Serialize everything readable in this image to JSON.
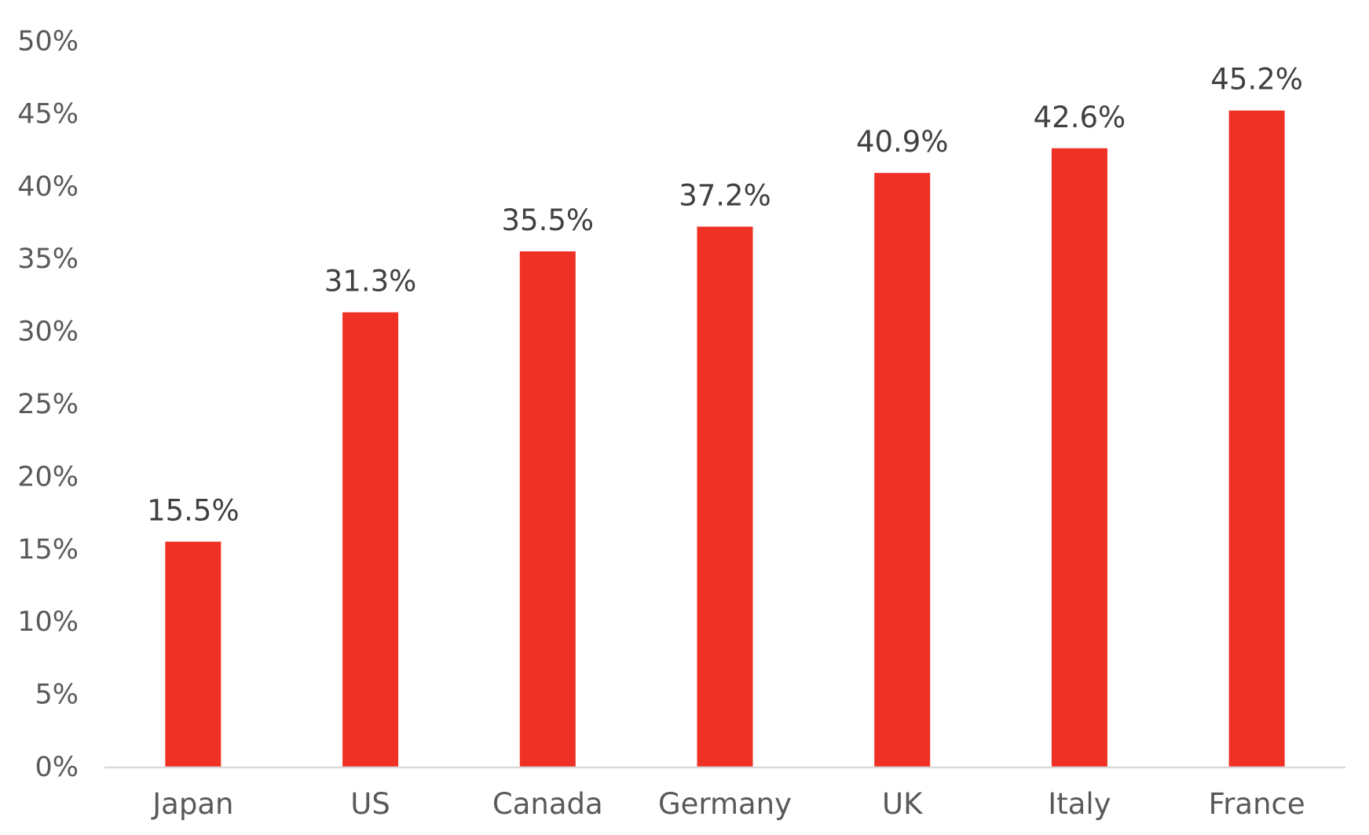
{
  "chart_data": {
    "type": "bar",
    "categories": [
      "Japan",
      "US",
      "Canada",
      "Germany",
      "UK",
      "Italy",
      "France"
    ],
    "values": [
      15.5,
      31.3,
      35.5,
      37.2,
      40.9,
      42.6,
      45.2
    ],
    "data_labels": [
      "15.5%",
      "31.3%",
      "35.5%",
      "37.2%",
      "40.9%",
      "42.6%",
      "45.2%"
    ],
    "y_ticks": [
      0,
      5,
      10,
      15,
      20,
      25,
      30,
      35,
      40,
      45,
      50
    ],
    "y_tick_labels": [
      "0%",
      "5%",
      "10%",
      "15%",
      "20%",
      "25%",
      "30%",
      "35%",
      "40%",
      "45%",
      "50%"
    ],
    "ylim": [
      0,
      50
    ],
    "grid": false,
    "legend": "none",
    "colors": {
      "bar": "#EE3124",
      "axis_line": "#D9D9D9",
      "tick_text": "#595959",
      "data_label_text": "#404040"
    }
  }
}
